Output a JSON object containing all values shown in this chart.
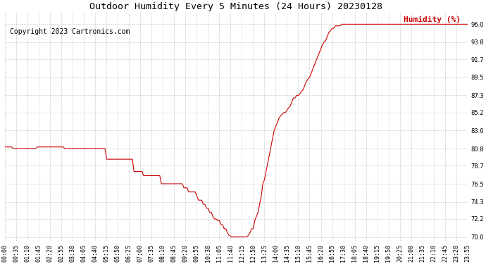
{
  "title": "Outdoor Humidity Every 5 Minutes (24 Hours) 20230128",
  "copyright_text": "Copyright 2023 Cartronics.com",
  "legend_label": "Humidity (%)",
  "line_color": "#cc0000",
  "legend_color": "#cc0000",
  "background_color": "#ffffff",
  "grid_color": "#aaaaaa",
  "yticks": [
    70.0,
    72.2,
    74.3,
    76.5,
    78.7,
    80.8,
    83.0,
    85.2,
    87.3,
    89.5,
    91.7,
    93.8,
    96.0
  ],
  "ylim": [
    69.5,
    97.5
  ],
  "xlim_max": 1435,
  "xtick_step_minutes": 35,
  "title_fontsize": 9.5,
  "tick_fontsize": 6,
  "copyright_fontsize": 7,
  "legend_fontsize": 8,
  "humidity_data": [
    81.0,
    81.0,
    81.0,
    81.0,
    81.0,
    80.8,
    80.8,
    80.8,
    80.8,
    80.8,
    80.8,
    80.8,
    80.8,
    80.8,
    80.8,
    80.8,
    80.8,
    80.8,
    80.8,
    80.8,
    81.0,
    81.0,
    81.0,
    81.0,
    81.0,
    81.0,
    81.0,
    81.0,
    81.0,
    81.0,
    81.0,
    81.0,
    81.0,
    81.0,
    81.0,
    81.0,
    81.0,
    80.8,
    80.8,
    80.8,
    80.8,
    80.8,
    80.8,
    80.8,
    80.8,
    80.8,
    80.8,
    80.8,
    80.8,
    80.8,
    80.8,
    80.8,
    80.8,
    80.8,
    80.8,
    80.8,
    80.8,
    80.8,
    80.8,
    80.8,
    80.8,
    80.8,
    80.8,
    79.5,
    79.5,
    79.5,
    79.5,
    79.5,
    79.5,
    79.5,
    79.5,
    79.5,
    79.5,
    79.5,
    79.5,
    79.5,
    79.5,
    79.5,
    79.5,
    79.5,
    78.0,
    78.0,
    78.0,
    78.0,
    78.0,
    78.0,
    77.5,
    77.5,
    77.5,
    77.5,
    77.5,
    77.5,
    77.5,
    77.5,
    77.5,
    77.5,
    77.5,
    76.5,
    76.5,
    76.5,
    76.5,
    76.5,
    76.5,
    76.5,
    76.5,
    76.5,
    76.5,
    76.5,
    76.5,
    76.5,
    76.5,
    76.0,
    76.0,
    76.0,
    75.5,
    75.5,
    75.5,
    75.5,
    75.5,
    75.0,
    74.5,
    74.5,
    74.5,
    74.0,
    74.0,
    73.5,
    73.5,
    73.0,
    73.0,
    72.5,
    72.2,
    72.2,
    72.0,
    72.0,
    71.5,
    71.5,
    71.0,
    71.0,
    70.5,
    70.2,
    70.1,
    70.0,
    70.0,
    70.0,
    70.0,
    70.0,
    70.0,
    70.0,
    70.0,
    70.0,
    70.0,
    70.2,
    70.5,
    71.0,
    71.0,
    72.0,
    72.5,
    73.0,
    74.0,
    75.0,
    76.5,
    77.0,
    78.0,
    79.0,
    80.0,
    81.0,
    82.0,
    83.0,
    83.5,
    84.0,
    84.5,
    84.8,
    85.0,
    85.2,
    85.2,
    85.5,
    85.8,
    86.0,
    86.5,
    87.0,
    87.0,
    87.3,
    87.3,
    87.5,
    87.8,
    88.0,
    88.5,
    89.0,
    89.3,
    89.5,
    90.0,
    90.5,
    91.0,
    91.5,
    92.0,
    92.5,
    93.0,
    93.5,
    93.8,
    94.0,
    94.5,
    95.0,
    95.2,
    95.5,
    95.5,
    95.8,
    95.8,
    95.8,
    95.8,
    96.0,
    96.0,
    96.0,
    96.0,
    96.0,
    96.0,
    96.0,
    96.0,
    96.0,
    96.0,
    96.0,
    96.0,
    96.0,
    96.0,
    96.0,
    96.0,
    96.0,
    96.0,
    96.0,
    96.0,
    96.0,
    96.0,
    96.0,
    96.0,
    96.0,
    96.0,
    96.0,
    96.0,
    96.0,
    96.0,
    96.0,
    96.0,
    96.0,
    96.0,
    96.0,
    96.0,
    96.0,
    96.0,
    96.0,
    96.0,
    96.0,
    96.0,
    96.0,
    96.0,
    96.0,
    96.0,
    96.0,
    96.0,
    96.0,
    96.0,
    96.0,
    96.0,
    96.0,
    96.0,
    96.0,
    96.0,
    96.0,
    96.0,
    96.0,
    96.0,
    96.0,
    96.0,
    96.0,
    96.0,
    96.0,
    96.0,
    96.0,
    96.0,
    96.0,
    96.0,
    96.0,
    96.0,
    96.0,
    96.0,
    96.0,
    96.0,
    96.0,
    96.0,
    96.0
  ]
}
